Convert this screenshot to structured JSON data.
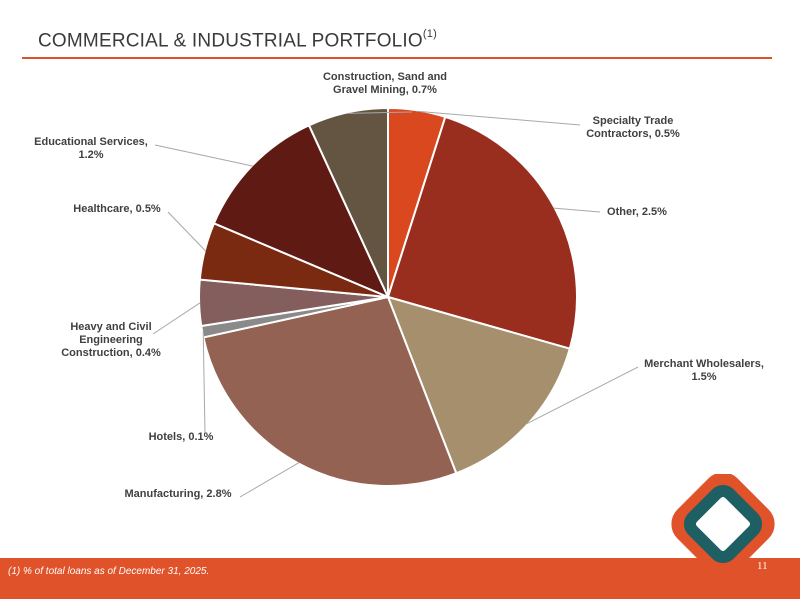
{
  "header": {
    "title": "COMMERCIAL & INDUSTRIAL PORTFOLIO",
    "title_superscript": "(1)"
  },
  "footer": {
    "footnote": "(1)  % of total loans as of December 31, 2025.",
    "page_number": "11"
  },
  "colors": {
    "accent": "#e0522a",
    "label_text": "#404040",
    "leader_line": "#a8a8a8"
  },
  "chart_data": {
    "type": "pie",
    "title": "",
    "unit": "% of total loans",
    "start": "12 o'clock",
    "direction": "clockwise",
    "slices": [
      {
        "name": "Specialty Trade Contractors",
        "value": 0.5,
        "color": "#d9481e",
        "label_lines": [
          "Specialty Trade",
          "Contractors, 0.5%"
        ]
      },
      {
        "name": "Other",
        "value": 2.5,
        "color": "#9a2e1e",
        "label_lines": [
          "Other, 2.5%"
        ]
      },
      {
        "name": "Merchant Wholesalers",
        "value": 1.5,
        "color": "#a58f6c",
        "label_lines": [
          "Merchant Wholesalers,",
          "1.5%"
        ]
      },
      {
        "name": "Manufacturing",
        "value": 2.8,
        "color": "#936253",
        "label_lines": [
          "Manufacturing, 2.8%"
        ]
      },
      {
        "name": "Hotels",
        "value": 0.1,
        "color": "#8a8a8a",
        "label_lines": [
          "Hotels, 0.1%"
        ]
      },
      {
        "name": "Heavy and Civil Engineering Construction",
        "value": 0.4,
        "color": "#845e5d",
        "label_lines": [
          "Heavy and Civil",
          "Engineering",
          "Construction, 0.4%"
        ]
      },
      {
        "name": "Healthcare",
        "value": 0.5,
        "color": "#7b2a12",
        "label_lines": [
          "Healthcare, 0.5%"
        ]
      },
      {
        "name": "Educational Services",
        "value": 1.2,
        "color": "#5f1a14",
        "label_lines": [
          "Educational Services,",
          "1.2%"
        ]
      },
      {
        "name": "Construction, Sand and Gravel Mining",
        "value": 0.7,
        "color": "#645542",
        "label_lines": [
          "Construction, Sand and",
          "Gravel Mining, 0.7%"
        ]
      }
    ]
  }
}
